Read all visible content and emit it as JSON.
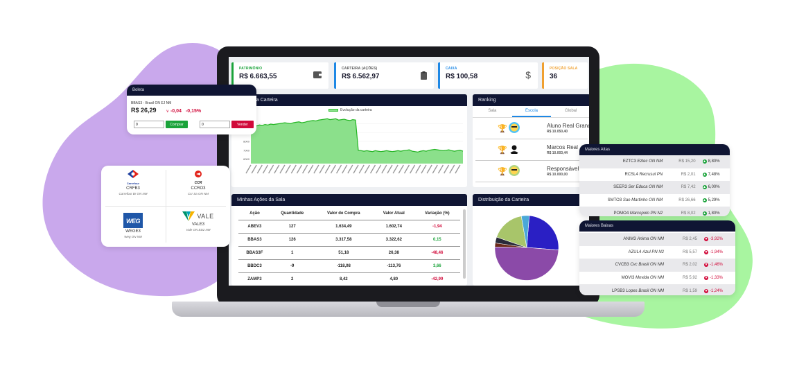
{
  "colors": {
    "navy": "#0f1533",
    "green": "#1aa33a",
    "red": "#d10a3a",
    "blue": "#1e88e5",
    "orange": "#f0a030",
    "purple_blob": "#c9a8ec",
    "green_blob": "#a8f5a0"
  },
  "stats": [
    {
      "label": "PATRIMÔNIO",
      "value": "R$ 6.663,55",
      "color": "#1aa33a",
      "icon": "wallet-icon"
    },
    {
      "label": "CARTEIRA (AÇÕES)",
      "value": "R$ 6.562,97",
      "color": "#1e88e5",
      "icon": "clipboard-icon"
    },
    {
      "label": "CAIXA",
      "value": "R$ 100,58",
      "color": "#1e88e5",
      "icon": "dollar-icon"
    },
    {
      "label": "POSIÇÃO SALA",
      "value": "36",
      "color": "#f0a030",
      "icon": ""
    }
  ],
  "evolucao": {
    "title": "da Carteira",
    "legend": "Evolução da carteira"
  },
  "chart_data": {
    "type": "area",
    "title": "",
    "legend": [
      "Evolução da carteira"
    ],
    "y_ticks": [
      10000,
      9000,
      8000,
      7000,
      6000
    ],
    "ylim": [
      5500,
      11200
    ],
    "values": [
      9900,
      9800,
      9750,
      9850,
      9800,
      9900,
      9850,
      9950,
      9900,
      9950,
      10000,
      10050,
      10100,
      10050,
      10000,
      10100,
      10150,
      10200,
      10100,
      10150,
      10250,
      10300,
      10350,
      10300,
      10400,
      10450,
      10500,
      10550,
      10450,
      10500,
      10550,
      10400,
      10450,
      10500,
      10400,
      10350,
      10450,
      10400,
      7000,
      6950,
      6900,
      6950,
      6900,
      6850,
      6950,
      6900,
      6850,
      6900,
      6950,
      6900,
      6850,
      6900,
      6950,
      6900,
      6950,
      7000,
      7050,
      6900,
      6850,
      6800,
      6900,
      6950,
      6900,
      7000,
      7050,
      7100,
      7050,
      7000,
      6950,
      7000,
      7050,
      6950,
      6900,
      6950,
      7000,
      6900
    ]
  },
  "ranking": {
    "title": "Ranking",
    "tabs": [
      "Sala",
      "Escola",
      "Global"
    ],
    "active_tab": 1,
    "rows": [
      {
        "name": "Aluno Real Grana",
        "value": "R$ 10.050,40",
        "trophy": "#e8b800"
      },
      {
        "name": "Marcos Real",
        "value": "R$ 10.003,44",
        "trophy": "#a0a0a0"
      },
      {
        "name": "Responsável",
        "value": "R$ 10.000,00",
        "trophy": "#c77b30"
      }
    ]
  },
  "acoes": {
    "title": "Minhas Ações da Sala",
    "headers": [
      "Ação",
      "Quantidade",
      "Valor de Compra",
      "Valor Atual",
      "Variação (%)"
    ],
    "rows": [
      [
        "ABEV3",
        "127",
        "1.634,49",
        "1.602,74",
        "-1,94"
      ],
      [
        "BBAS3",
        "126",
        "3.317,58",
        "3.322,62",
        "0,15"
      ],
      [
        "BBAS3F",
        "1",
        "51,18",
        "26,38",
        "-48,46"
      ],
      [
        "BBDC3",
        "-9",
        "-118,08",
        "-113,76",
        "3,66"
      ],
      [
        "ZAMP3",
        "2",
        "8,42",
        "4,80",
        "-42,99"
      ]
    ]
  },
  "distribuicao": {
    "title": "Distribuição da Carteira"
  },
  "pie_data": {
    "type": "pie",
    "slices": [
      {
        "value": 25,
        "color": "#2a1fc4"
      },
      {
        "value": 49,
        "color": "#8b4aa8"
      },
      {
        "value": 2,
        "color": "#6b2a1a"
      },
      {
        "value": 3,
        "color": "#2a2a3a"
      },
      {
        "value": 17,
        "color": "#a8c56a"
      },
      {
        "value": 4,
        "color": "#4aa8d8"
      }
    ]
  },
  "boleta": {
    "title": "Boleta",
    "asset": "BBAS3 - Brasil ON EJ NM",
    "price": "R$ 26,29",
    "change": "-0,04",
    "change_pct": "-0,15%",
    "buy_qty": "0",
    "sell_qty": "0",
    "buy_label": "Comprar",
    "sell_label": "Vender"
  },
  "companies": [
    {
      "logo": "Carrefour",
      "code": "CRFB3",
      "name": "Carrefour Br ON NM"
    },
    {
      "logo": "CCR",
      "code": "CCRO3",
      "name": "Ccr Sa ON NM"
    },
    {
      "logo": "WEG",
      "code": "WEGE3",
      "name": "Weg ON NM"
    },
    {
      "logo": "VALE",
      "code": "VALE3",
      "name": "Vale ON ED2 NM"
    }
  ],
  "maiores_altas": {
    "title": "Maiores Altas",
    "rows": [
      {
        "code": "EZTC3",
        "name": "Eztec ON NM",
        "price": "R$ 15,20",
        "change": "8,80%"
      },
      {
        "code": "RCSL4",
        "name": "Recrusul PN",
        "price": "R$ 2,01",
        "change": "7,48%"
      },
      {
        "code": "SEER3",
        "name": "Ser Educa ON NM",
        "price": "R$ 7,42",
        "change": "6,00%"
      },
      {
        "code": "SMTO3",
        "name": "Sao Martinho ON NM",
        "price": "R$ 26,66",
        "change": "5,29%"
      },
      {
        "code": "POMO4",
        "name": "Marcopolo PN N2",
        "price": "R$ 8,02",
        "change": "1,80%"
      }
    ]
  },
  "maiores_baixas": {
    "title": "Maiores Baixas",
    "rows": [
      {
        "code": "ANIM3",
        "name": "Anima ON NM",
        "price": "R$ 2,45",
        "change": "-3,92%"
      },
      {
        "code": "AZUL4",
        "name": "Azul PN N2",
        "price": "R$ 5,57",
        "change": "-1,94%"
      },
      {
        "code": "CVCB3",
        "name": "Cvc Brasil ON NM",
        "price": "R$ 2,02",
        "change": "-1,46%"
      },
      {
        "code": "MOVI3",
        "name": "Movida ON NM",
        "price": "R$ 5,92",
        "change": "-1,33%"
      },
      {
        "code": "LPSB3",
        "name": "Lopes Brasil ON NM",
        "price": "R$ 1,59",
        "change": "-1,24%"
      }
    ]
  }
}
